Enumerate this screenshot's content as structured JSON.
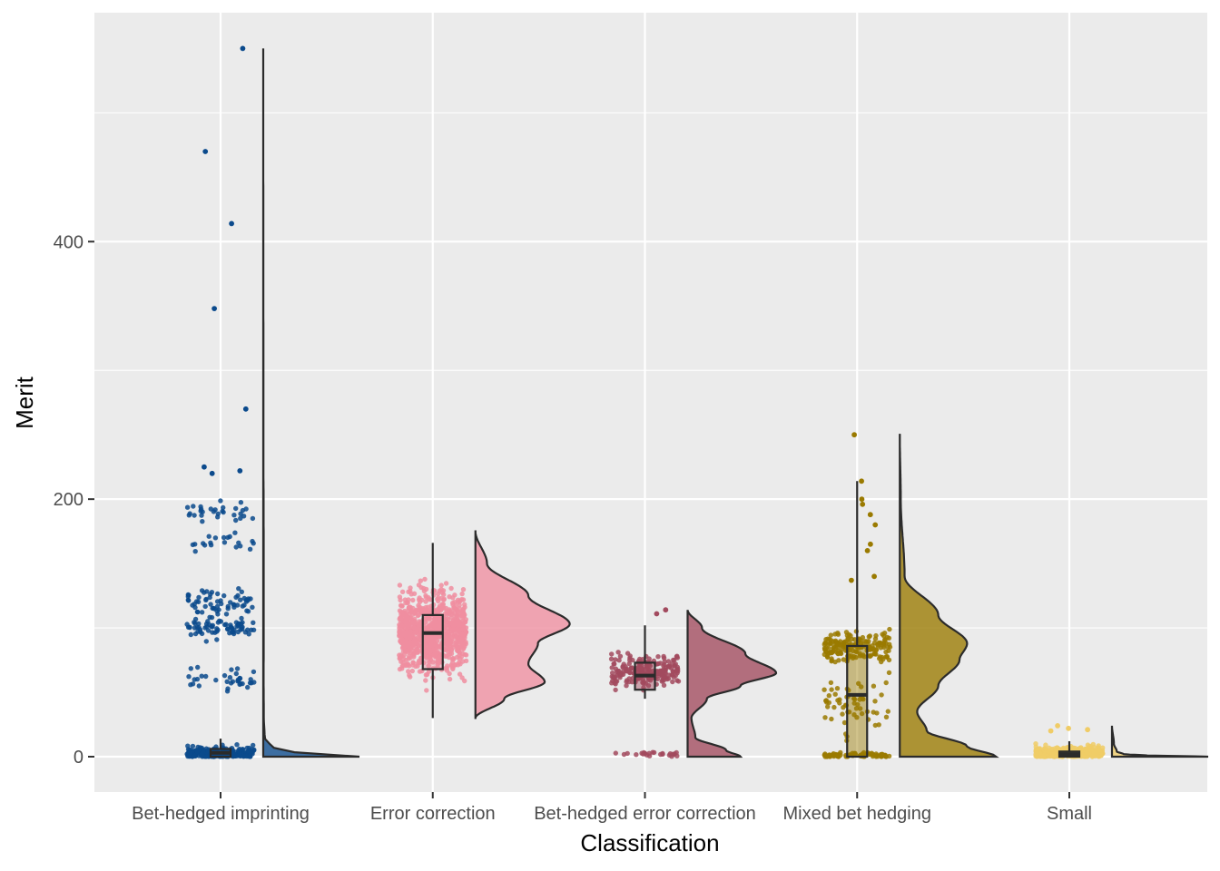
{
  "chart_data": {
    "type": "raincloud",
    "xlabel": "Classification",
    "ylabel": "Merit",
    "categories": [
      "Bet-hedged imprinting",
      "Error correction",
      "Bet-hedged error correction",
      "Mixed bet hedging",
      "Small"
    ],
    "colors": [
      "#0b4a8c",
      "#f08ea0",
      "#a24a5e",
      "#9a7a00",
      "#f0cc66"
    ],
    "ylim": [
      -28,
      550
    ],
    "y_ticks": [
      0,
      200,
      400
    ],
    "y_tick_labels": [
      "0",
      "200",
      "400"
    ],
    "grid": true,
    "legend": "none",
    "series": [
      {
        "category": "Bet-hedged imprinting",
        "boxplot": {
          "min": 0,
          "q1": 0,
          "median": 3,
          "q3": 6,
          "max": 14
        },
        "max_value": 550,
        "clusters": [
          {
            "center": 2,
            "spread": 6,
            "count": 260
          },
          {
            "center": 100,
            "spread": 8,
            "count": 70
          },
          {
            "center": 120,
            "spread": 10,
            "count": 60
          },
          {
            "center": 60,
            "spread": 8,
            "count": 35
          },
          {
            "center": 190,
            "spread": 8,
            "count": 30
          },
          {
            "center": 165,
            "spread": 10,
            "count": 20
          }
        ],
        "outliers": [
          550,
          470,
          414,
          348,
          270,
          225,
          222,
          220
        ],
        "density": [
          [
            0,
            1
          ],
          [
            5,
            0.12
          ],
          [
            15,
            0.015
          ],
          [
            30,
            0.006
          ],
          [
            60,
            0.004
          ],
          [
            100,
            0.005
          ],
          [
            130,
            0.005
          ],
          [
            200,
            0.004
          ],
          [
            220,
            0.002
          ],
          [
            550,
            0
          ]
        ]
      },
      {
        "category": "Error correction",
        "boxplot": {
          "min": 30,
          "q1": 68,
          "median": 96,
          "q3": 110,
          "max": 166
        },
        "max_value": 175,
        "clusters": [
          {
            "center": 97,
            "spread": 30,
            "count": 900
          }
        ],
        "outliers": [],
        "density": [
          [
            30,
            0
          ],
          [
            45,
            0.3
          ],
          [
            58,
            0.72
          ],
          [
            72,
            0.55
          ],
          [
            88,
            0.65
          ],
          [
            103,
            0.98
          ],
          [
            125,
            0.55
          ],
          [
            150,
            0.12
          ],
          [
            175,
            0
          ]
        ]
      },
      {
        "category": "Bet-hedged error correction",
        "boxplot": {
          "min": 45,
          "q1": 52,
          "median": 63,
          "q3": 73,
          "max": 102
        },
        "max_value": 114,
        "clusters": [
          {
            "center": 66,
            "spread": 12,
            "count": 220
          },
          {
            "center": 2,
            "spread": 2,
            "count": 25
          }
        ],
        "outliers": [
          114,
          111
        ],
        "density": [
          [
            0,
            0.55
          ],
          [
            5,
            0.4
          ],
          [
            15,
            0.08
          ],
          [
            30,
            0.04
          ],
          [
            45,
            0.2
          ],
          [
            55,
            0.55
          ],
          [
            65,
            0.92
          ],
          [
            80,
            0.6
          ],
          [
            100,
            0.15
          ],
          [
            114,
            0
          ]
        ]
      },
      {
        "category": "Mixed bet hedging",
        "boxplot": {
          "min": 0,
          "q1": 0,
          "median": 48,
          "q3": 86,
          "max": 214
        },
        "max_value": 250,
        "clusters": [
          {
            "center": 85,
            "spread": 12,
            "count": 180
          },
          {
            "center": 1,
            "spread": 2,
            "count": 80
          },
          {
            "center": 40,
            "spread": 22,
            "count": 60
          }
        ],
        "outliers": [
          250,
          214,
          200,
          196,
          188,
          180,
          165,
          160,
          140,
          137
        ],
        "density": [
          [
            0,
            1
          ],
          [
            8,
            0.7
          ],
          [
            20,
            0.28
          ],
          [
            35,
            0.18
          ],
          [
            55,
            0.4
          ],
          [
            75,
            0.62
          ],
          [
            88,
            0.7
          ],
          [
            110,
            0.4
          ],
          [
            140,
            0.05
          ],
          [
            200,
            0.01
          ],
          [
            250,
            0
          ]
        ]
      },
      {
        "category": "Small",
        "boxplot": {
          "min": 0,
          "q1": 0,
          "median": 2,
          "q3": 4,
          "max": 12
        },
        "max_value": 24,
        "clusters": [
          {
            "center": 3,
            "spread": 5,
            "count": 400
          }
        ],
        "outliers": [
          24,
          22,
          21,
          20
        ],
        "density": [
          [
            0,
            1
          ],
          [
            1,
            0.35
          ],
          [
            2,
            0.12
          ],
          [
            4,
            0.05
          ],
          [
            10,
            0.02
          ],
          [
            24,
            0
          ]
        ]
      }
    ]
  }
}
